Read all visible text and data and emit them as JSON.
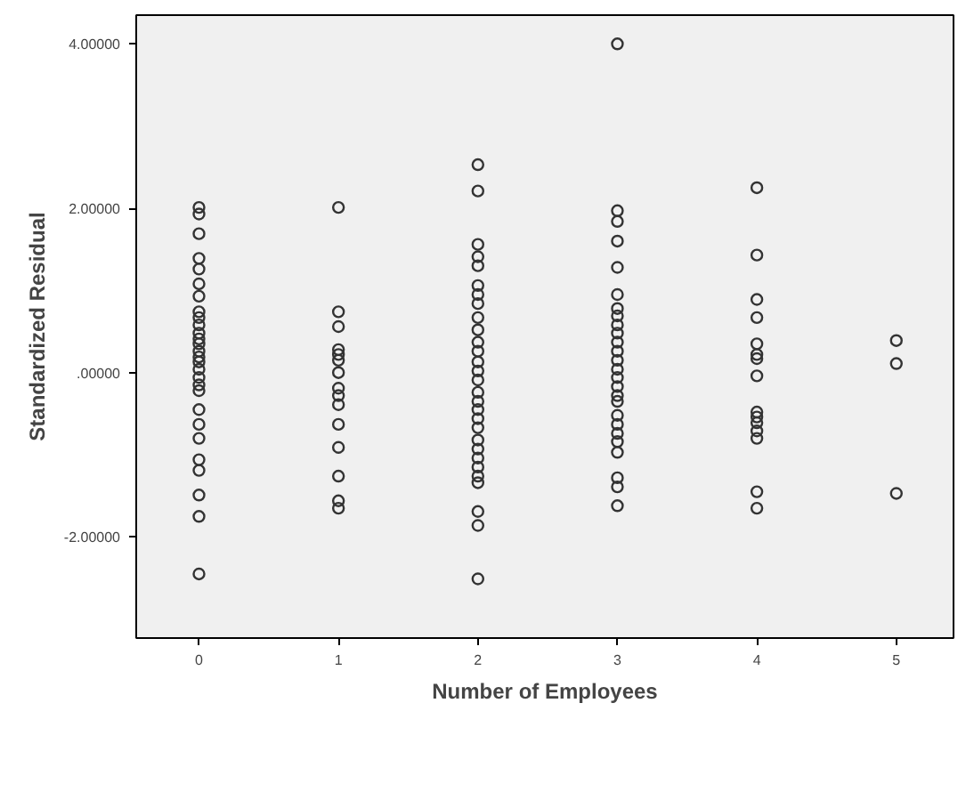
{
  "chart_data": {
    "type": "scatter",
    "xlabel": "Number of Employees",
    "ylabel": "Standardized Residual",
    "xlim": [
      -0.45,
      5.41
    ],
    "ylim": [
      -3.23,
      4.35
    ],
    "xticks": [
      0,
      1,
      2,
      3,
      4,
      5
    ],
    "yticks": [
      {
        "value": 4,
        "label": "4.00000"
      },
      {
        "value": 2,
        "label": "2.00000"
      },
      {
        "value": 0,
        "label": ".00000"
      },
      {
        "value": -2,
        "label": "-2.00000"
      }
    ],
    "grid": false,
    "marker": "circle",
    "series": [
      {
        "color": "#333333",
        "x": [
          0,
          0,
          0,
          0,
          0,
          0,
          0,
          0,
          0,
          0,
          0,
          0,
          0,
          0,
          0,
          0,
          0,
          0,
          0,
          0,
          0,
          0,
          0,
          0,
          0,
          0,
          0,
          0,
          1,
          1,
          1,
          1,
          1,
          1,
          1,
          1,
          1,
          1,
          1,
          1,
          1,
          1,
          1,
          2,
          2,
          2,
          2,
          2,
          2,
          2,
          2,
          2,
          2,
          2,
          2,
          2,
          2,
          2,
          2,
          2,
          2,
          2,
          2,
          2,
          2,
          2,
          2,
          2,
          2,
          2,
          2,
          2,
          3,
          3,
          3,
          3,
          3,
          3,
          3,
          3,
          3,
          3,
          3,
          3,
          3,
          3,
          3,
          3,
          3,
          3,
          3,
          3,
          3,
          3,
          3,
          3,
          3,
          3,
          4,
          4,
          4,
          4,
          4,
          4,
          4,
          4,
          4,
          4,
          4,
          4,
          4,
          4,
          4,
          5,
          5,
          5
        ],
        "values": [
          2.01,
          1.93,
          1.69,
          1.39,
          1.26,
          1.08,
          0.93,
          0.74,
          0.67,
          0.58,
          0.48,
          0.41,
          0.35,
          0.26,
          0.19,
          0.13,
          0.04,
          -0.06,
          -0.15,
          -0.22,
          -0.45,
          -0.63,
          -0.8,
          -1.06,
          -1.19,
          -1.49,
          -1.75,
          -2.45,
          2.01,
          0.74,
          0.56,
          0.28,
          0.22,
          0.15,
          0.0,
          -0.19,
          -0.28,
          -0.39,
          -0.63,
          -0.91,
          -1.26,
          -1.56,
          -1.65,
          2.53,
          2.21,
          1.56,
          1.41,
          1.3,
          1.06,
          0.95,
          0.84,
          0.67,
          0.52,
          0.37,
          0.26,
          0.13,
          0.02,
          -0.09,
          -0.24,
          -0.35,
          -0.45,
          -0.56,
          -0.67,
          -0.82,
          -0.93,
          -1.04,
          -1.15,
          -1.26,
          -1.34,
          -1.69,
          -1.86,
          -2.51,
          4.0,
          1.97,
          1.84,
          1.6,
          1.28,
          0.95,
          0.78,
          0.69,
          0.58,
          0.48,
          0.37,
          0.26,
          0.15,
          0.04,
          -0.06,
          -0.17,
          -0.28,
          -0.35,
          -0.52,
          -0.63,
          -0.74,
          -0.84,
          -0.97,
          -1.28,
          -1.39,
          -1.62,
          2.25,
          1.43,
          0.89,
          0.67,
          0.35,
          0.22,
          0.17,
          -0.04,
          -0.48,
          -0.54,
          -0.61,
          -0.71,
          -0.8,
          -1.45,
          -1.65,
          0.39,
          0.11,
          -1.47
        ]
      }
    ]
  }
}
